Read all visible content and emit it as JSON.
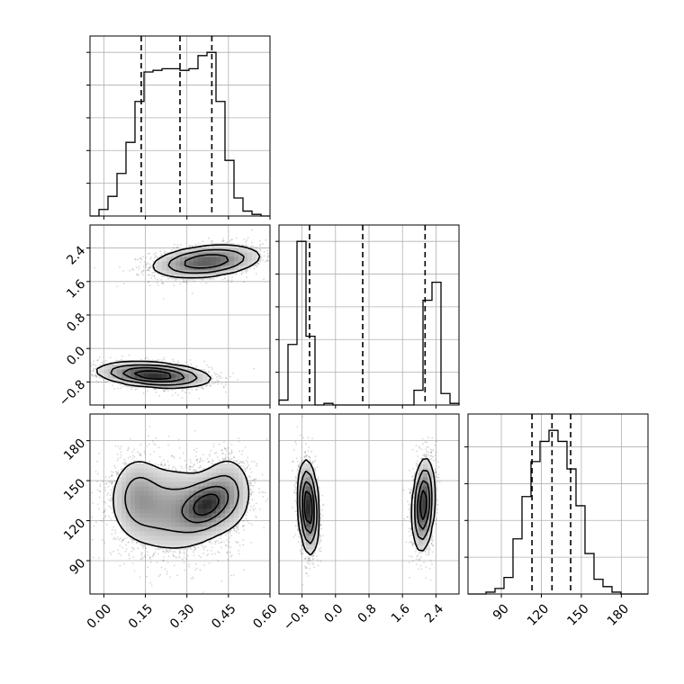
{
  "chart_data": {
    "type": "corner",
    "parameters": [
      "",
      "",
      ""
    ],
    "grid": true,
    "quantile_lines": "dashed",
    "ticks": {
      "p0": [
        0.0,
        0.15,
        0.3,
        0.45,
        0.6
      ],
      "p1": [
        -0.8,
        0.0,
        0.8,
        1.6,
        2.4
      ],
      "p2": [
        90,
        120,
        150,
        180
      ]
    },
    "tick_labels": {
      "p0": [
        "0.00",
        "0.15",
        "0.30",
        "0.45",
        "0.60"
      ],
      "p1": [
        "−0.8",
        "0.0",
        "0.8",
        "1.6",
        "2.4"
      ],
      "p2": [
        "90",
        "120",
        "150",
        "180"
      ]
    },
    "ranges": {
      "p0": [
        -0.05,
        0.6
      ],
      "p1": [
        -1.35,
        2.95
      ],
      "p2": [
        65,
        200
      ]
    },
    "quantiles": {
      "p0": [
        0.135,
        0.275,
        0.39
      ],
      "p1": [
        -0.62,
        0.65,
        2.14
      ],
      "p2": [
        113,
        128,
        142
      ]
    },
    "histograms": {
      "p0": {
        "bin_start": -0.05,
        "bin_width": 0.0325,
        "counts": [
          0,
          4,
          12,
          26,
          45,
          70,
          88,
          89,
          90,
          90,
          89,
          90,
          98,
          100,
          70,
          34,
          11,
          3,
          1,
          0
        ]
      },
      "p1": {
        "bin_start": -1.35,
        "bin_width": 0.215,
        "counts": [
          3,
          37,
          100,
          42,
          0,
          1,
          0,
          0,
          0,
          0,
          0,
          0,
          0,
          0,
          0,
          9,
          64,
          75,
          7,
          1
        ]
      },
      "p2": {
        "bin_start": 65,
        "bin_width": 6.75,
        "counts": [
          0,
          0,
          1,
          3,
          9,
          30,
          53,
          72,
          83,
          89,
          83,
          68,
          48,
          22,
          8,
          4,
          1,
          0,
          0,
          0
        ]
      }
    },
    "density_blobs": {
      "p1_vs_p0": [
        {
          "x": 0.37,
          "y": 2.08,
          "sx": 0.1,
          "sy": 0.2,
          "rho": 0.3,
          "n": 2600
        },
        {
          "x": 0.18,
          "y": -0.63,
          "sx": 0.1,
          "sy": 0.15,
          "rho": -0.3,
          "n": 2600
        }
      ],
      "p2_vs_p0": [
        {
          "x": 0.25,
          "y": 128,
          "sx": 0.11,
          "sy": 18,
          "rho": 0.0,
          "n": 3200
        },
        {
          "x": 0.37,
          "y": 132,
          "sx": 0.05,
          "sy": 10,
          "rho": 0.3,
          "n": 1400
        },
        {
          "x": 0.12,
          "y": 140,
          "sx": 0.05,
          "sy": 16,
          "rho": 0.0,
          "n": 900
        },
        {
          "x": 0.45,
          "y": 142,
          "sx": 0.05,
          "sy": 16,
          "rho": 0.0,
          "n": 900
        }
      ],
      "p2_vs_p1": [
        {
          "x": -0.65,
          "y": 130,
          "sx": 0.12,
          "sy": 17,
          "rho": -0.2,
          "n": 2600
        },
        {
          "x": 2.1,
          "y": 132,
          "sx": 0.13,
          "sy": 17,
          "rho": 0.2,
          "n": 2600
        }
      ]
    }
  }
}
